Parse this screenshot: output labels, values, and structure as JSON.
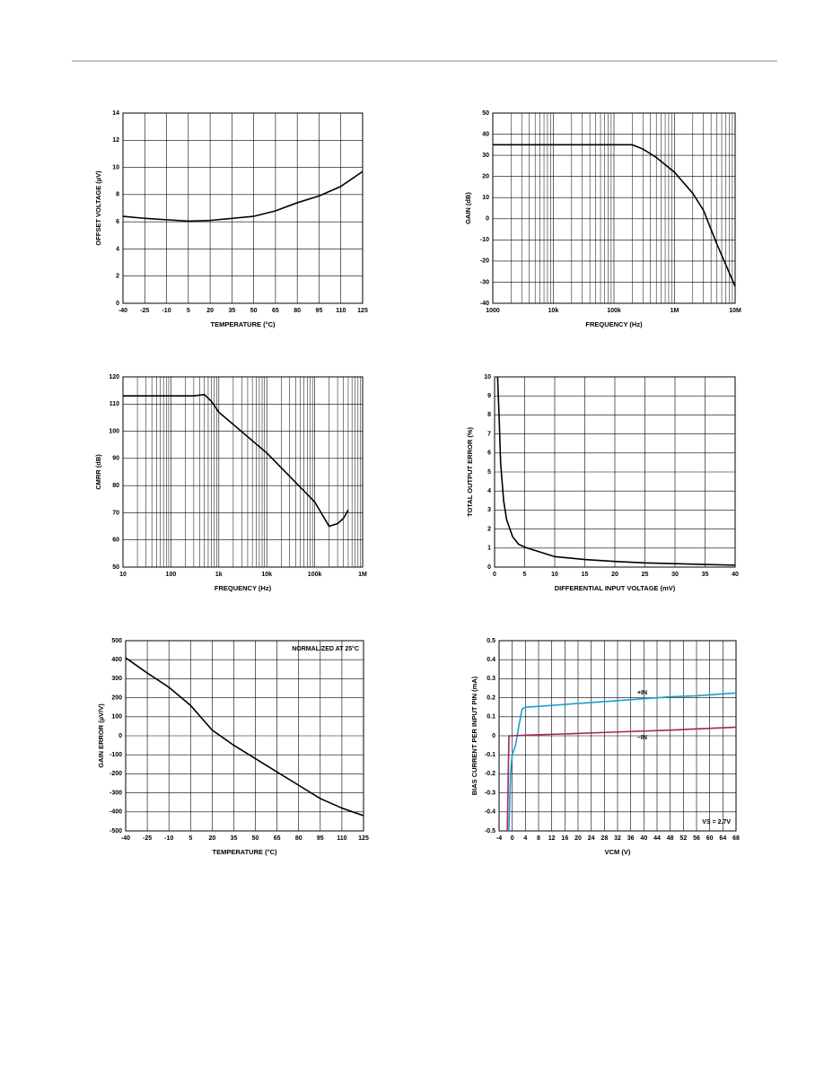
{
  "chart_data": [
    {
      "type": "line",
      "xlabel": "TEMPERATURE (°C)",
      "ylabel": "OFFSET VOLTAGE (µV)",
      "xlim": [
        -40,
        125
      ],
      "xticks": [
        -40,
        -25,
        -10,
        5,
        20,
        35,
        50,
        65,
        80,
        95,
        110,
        125
      ],
      "ylim": [
        0,
        14
      ],
      "yticks": [
        0,
        2,
        4,
        6,
        8,
        10,
        12,
        14
      ],
      "grid": true,
      "xlog": false,
      "series": [
        {
          "color": "#000000",
          "x": [
            -40,
            -25,
            -10,
            5,
            20,
            35,
            50,
            65,
            80,
            95,
            110,
            125
          ],
          "values": [
            6.4,
            6.25,
            6.15,
            6.05,
            6.1,
            6.25,
            6.4,
            6.8,
            7.4,
            7.9,
            8.6,
            9.7
          ]
        }
      ]
    },
    {
      "type": "line",
      "xlabel": "FREQUENCY (Hz)",
      "ylabel": "GAIN (dB)",
      "xlim": [
        1000,
        10000000
      ],
      "xticks": [
        1000,
        {
          "value": 10000,
          "label": "10k"
        },
        {
          "value": 100000,
          "label": "100k"
        },
        {
          "value": 1000000,
          "label": "1M"
        },
        {
          "value": 10000000,
          "label": "10M"
        }
      ],
      "ylim": [
        -40,
        50
      ],
      "yticks": [
        -40,
        -30,
        -20,
        -10,
        0,
        10,
        20,
        30,
        40,
        50
      ],
      "grid": true,
      "xlog": true,
      "series": [
        {
          "color": "#000000",
          "x": [
            1000,
            10000,
            100000,
            200000,
            300000,
            500000,
            1000000,
            2000000,
            3000000,
            5000000,
            10000000
          ],
          "values": [
            35,
            35,
            35,
            35,
            33,
            29,
            22,
            12,
            4,
            -12,
            -32
          ]
        }
      ]
    },
    {
      "type": "line",
      "xlabel": "FREQUENCY (Hz)",
      "ylabel": "CMRR (dB)",
      "xlim": [
        10,
        1000000
      ],
      "xticks": [
        10,
        100,
        {
          "value": 1000,
          "label": "1k"
        },
        {
          "value": 10000,
          "label": "10k"
        },
        {
          "value": 100000,
          "label": "100k"
        },
        {
          "value": 1000000,
          "label": "1M"
        }
      ],
      "ylim": [
        50,
        120
      ],
      "yticks": [
        50,
        60,
        70,
        80,
        90,
        100,
        110,
        120
      ],
      "grid": true,
      "xlog": true,
      "series": [
        {
          "color": "#000000",
          "x": [
            10,
            100,
            300,
            500,
            700,
            1000,
            10000,
            100000,
            200000,
            300000,
            400000,
            500000
          ],
          "values": [
            113,
            113,
            113,
            113.5,
            111,
            107,
            92,
            74,
            65,
            66,
            68,
            71
          ]
        }
      ]
    },
    {
      "type": "line",
      "xlabel": "DIFFERENTIAL INPUT VOLTAGE (mV)",
      "ylabel": "TOTAL OUTPUT ERROR (%)",
      "xlim": [
        0,
        40
      ],
      "xticks": [
        0,
        5,
        10,
        15,
        20,
        25,
        30,
        35,
        40
      ],
      "ylim": [
        0,
        10
      ],
      "yticks": [
        0,
        1,
        2,
        3,
        4,
        5,
        6,
        7,
        8,
        9,
        10
      ],
      "grid": true,
      "xlog": false,
      "series": [
        {
          "color": "#000000",
          "x": [
            0.5,
            0.8,
            1,
            1.5,
            2,
            3,
            4,
            5,
            7,
            10,
            15,
            20,
            25,
            30,
            35,
            40
          ],
          "values": [
            10,
            7.5,
            5.5,
            3.5,
            2.5,
            1.6,
            1.2,
            1.05,
            0.85,
            0.55,
            0.4,
            0.3,
            0.22,
            0.18,
            0.14,
            0.1
          ]
        }
      ]
    },
    {
      "type": "line",
      "xlabel": "TEMPERATURE (°C)",
      "ylabel": "GAIN ERROR (µV/V)",
      "annotations": [
        "NORMALIZED AT 25°C"
      ],
      "xlim": [
        -40,
        125
      ],
      "xticks": [
        -40,
        -25,
        -10,
        5,
        20,
        35,
        50,
        65,
        80,
        95,
        110,
        125
      ],
      "ylim": [
        -500,
        500
      ],
      "yticks": [
        -500,
        -400,
        -300,
        -200,
        -100,
        0,
        100,
        200,
        300,
        400,
        500
      ],
      "grid": true,
      "xlog": false,
      "series": [
        {
          "color": "#000000",
          "x": [
            -40,
            -25,
            -10,
            5,
            20,
            35,
            50,
            65,
            80,
            95,
            110,
            125
          ],
          "values": [
            410,
            330,
            255,
            160,
            30,
            -50,
            -120,
            -190,
            -260,
            -330,
            -380,
            -420
          ]
        }
      ]
    },
    {
      "type": "line",
      "xlabel": "VCM (V)",
      "ylabel": "BIAS CURRENT PER INPUT PIN (mA)",
      "annotations": [
        "VS = 2.7V"
      ],
      "xlim": [
        -4,
        68
      ],
      "xticks": [
        -4,
        0,
        4,
        8,
        12,
        16,
        20,
        24,
        28,
        32,
        36,
        40,
        44,
        48,
        52,
        56,
        60,
        64,
        68
      ],
      "ylim": [
        -0.5,
        0.5
      ],
      "yticks": [
        -0.5,
        -0.4,
        -0.3,
        -0.2,
        -0.1,
        0,
        0.1,
        0.2,
        0.3,
        0.4,
        0.5
      ],
      "grid": true,
      "xlog": false,
      "series": [
        {
          "name": "+IN",
          "color": "#1aa0c8",
          "x": [
            -1,
            -0.5,
            0,
            1,
            2,
            3,
            4,
            8,
            16,
            24,
            32,
            40,
            48,
            56,
            64,
            68
          ],
          "values": [
            -0.5,
            -0.2,
            -0.1,
            -0.05,
            0.05,
            0.14,
            0.15,
            0.155,
            0.165,
            0.175,
            0.185,
            0.195,
            0.205,
            0.21,
            0.22,
            0.225
          ]
        },
        {
          "name": "–IN",
          "color": "#a0285a",
          "x": [
            -1.5,
            -1.2,
            -1,
            0,
            4,
            16,
            32,
            48,
            68
          ],
          "values": [
            -0.5,
            -0.2,
            0,
            0,
            0.003,
            0.01,
            0.02,
            0.03,
            0.045
          ]
        }
      ]
    }
  ]
}
